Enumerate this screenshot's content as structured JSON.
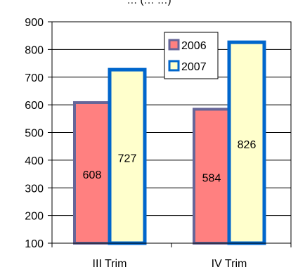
{
  "chart_data": {
    "type": "bar",
    "title": "… (… …)",
    "categories": [
      "III Trim",
      "IV Trim"
    ],
    "series": [
      {
        "name": "2006",
        "values": [
          608,
          584
        ],
        "fill": "#ff8080",
        "stroke": "#666699"
      },
      {
        "name": "2007",
        "values": [
          727,
          826
        ],
        "fill": "#ffffcc",
        "stroke": "#0066cc"
      }
    ],
    "ylim": [
      100,
      900
    ],
    "yticks": [
      100,
      200,
      300,
      400,
      500,
      600,
      700,
      800,
      900
    ],
    "grid": true,
    "legend_position": "top-center"
  }
}
